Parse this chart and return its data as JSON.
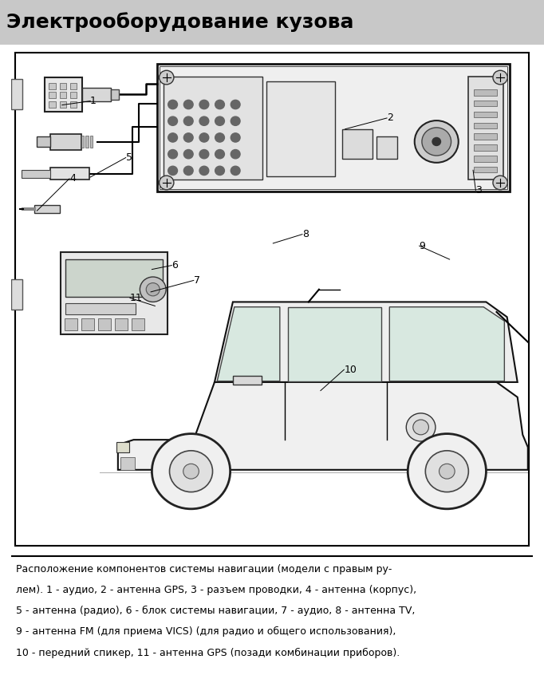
{
  "title": "Электрооборудование кузова",
  "title_fontsize": 18,
  "caption_lines": [
    "Расположение компонентов системы навигации (модели с правым ру-",
    "лем). 1 - аудио, 2 - антенна GPS, 3 - разъем проводки, 4 - антенна (корпус),",
    "5 - антенна (радио), 6 - блок системы навигации, 7 - аудио, 8 - антенна TV,",
    "9 - антенна FM (для приема VICS) (для радио и общего использования),",
    "10 - передний спикер, 11 - антенна GPS (позади комбинации приборов)."
  ],
  "caption_fontsize": 9.0,
  "bg_color": "#ffffff"
}
